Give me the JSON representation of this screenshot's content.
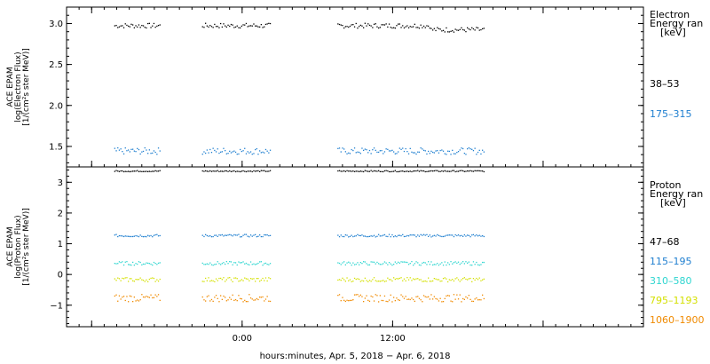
{
  "chart_data": [
    {
      "type": "scatter",
      "panel": "electron",
      "ylabel_lines": [
        "ACE EPAM",
        "log(Electron Flux)",
        "[1/(cm²s ster MeV)]"
      ],
      "ylim": [
        1.25,
        3.2
      ],
      "yticks": [
        1.5,
        2.0,
        2.5,
        3.0
      ],
      "ytick_labels": [
        "1.5",
        "2.0",
        "2.5",
        "3.0"
      ],
      "legend_title": [
        "Electron",
        "Energy ran",
        "[keV]"
      ],
      "x_segments": [
        [
          -10.2,
          -6.5
        ],
        [
          -3.2,
          2.3
        ],
        [
          7.6,
          19.3
        ]
      ],
      "series": [
        {
          "name": "38–53",
          "color": "#000000",
          "level": 2.98,
          "noise": 0.03
        },
        {
          "name": "175–315",
          "color": "#1f7fd0",
          "level": 1.45,
          "noise": 0.04
        }
      ]
    },
    {
      "type": "scatter",
      "panel": "proton",
      "ylabel_lines": [
        "ACE EPAM",
        "log(Proton Flux)",
        "[1/(cm²s ster MeV)]"
      ],
      "ylim": [
        -1.7,
        3.5
      ],
      "yticks": [
        -1,
        0,
        1,
        2,
        3
      ],
      "ytick_labels": [
        "−1",
        "0",
        "1",
        "2",
        "3"
      ],
      "legend_title": [
        "Proton",
        "Energy ran",
        "[keV]"
      ],
      "x_segments": [
        [
          -10.2,
          -6.5
        ],
        [
          -3.2,
          2.3
        ],
        [
          7.6,
          19.3
        ]
      ],
      "series": [
        {
          "name": "47–68",
          "color": "#000000",
          "level": 3.38,
          "noise": 0.02
        },
        {
          "name": "115–195",
          "color": "#1f7fd0",
          "level": 1.28,
          "noise": 0.04
        },
        {
          "name": "310–580",
          "color": "#2fd6d0",
          "level": 0.38,
          "noise": 0.06
        },
        {
          "name": "795–1193",
          "color": "#d4e000",
          "level": -0.15,
          "noise": 0.07
        },
        {
          "name": "1060–1900",
          "color": "#f08a00",
          "level": -0.75,
          "noise": 0.12
        }
      ]
    }
  ],
  "x_axis": {
    "range_hours": [
      -14,
      32
    ],
    "tick_labels": [
      {
        "hour": 0,
        "label": "0:00"
      },
      {
        "hour": 12,
        "label": "12:00"
      }
    ],
    "major_ticks_hours": [
      -12,
      0,
      12,
      24
    ],
    "minor_step_hours": 1,
    "title": "hours:minutes, Apr.  5, 2018 − Apr.  6, 2018"
  }
}
